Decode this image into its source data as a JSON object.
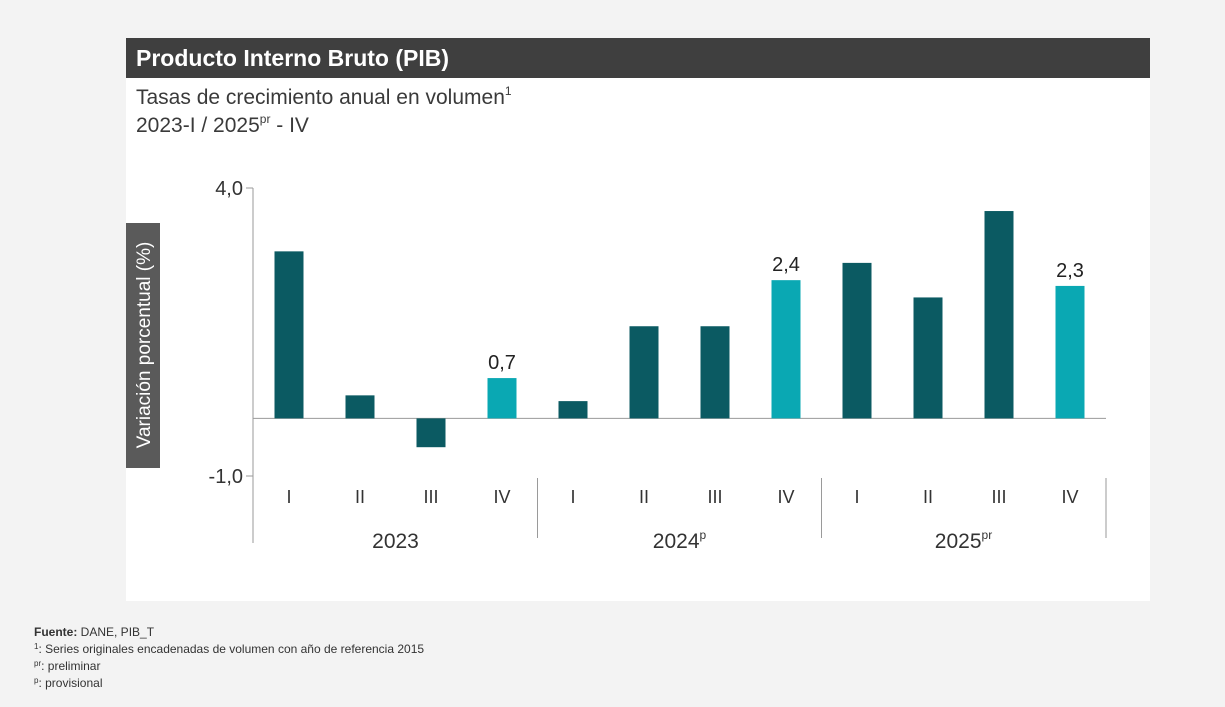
{
  "header": {
    "title": "Producto Interno Bruto (PIB)",
    "subtitle": "Tasas de crecimiento anual en volumen",
    "subtitle_sup": "1",
    "period_start": "2023-I / 2025",
    "period_sup": "pr",
    "period_end": " - IV"
  },
  "chart_data": {
    "type": "bar",
    "ylabel": "Variación porcentual (%)",
    "ylim": [
      -1.0,
      4.0
    ],
    "ytick_labels": [
      "4,0",
      "-1,0"
    ],
    "categories": [
      "I",
      "II",
      "III",
      "IV",
      "I",
      "II",
      "III",
      "IV",
      "I",
      "II",
      "III",
      "IV"
    ],
    "groups": [
      {
        "label": "2023",
        "sup": ""
      },
      {
        "label": "2024",
        "sup": "p"
      },
      {
        "label": "2025",
        "sup": "pr"
      }
    ],
    "values": [
      2.9,
      0.4,
      -0.5,
      0.7,
      0.3,
      1.6,
      1.6,
      2.4,
      2.7,
      2.1,
      3.6,
      2.3
    ],
    "data_labels": [
      "",
      "",
      "",
      "0,7",
      "",
      "",
      "",
      "2,4",
      "",
      "",
      "",
      "2,3"
    ],
    "colors": {
      "regular": "#0b5a62",
      "highlight": "#0aa8b3",
      "ylabel_bg": "#5a5a5a"
    },
    "highlight_indices": [
      3,
      7,
      11
    ]
  },
  "footnotes": {
    "source_label": "Fuente:",
    "source_text": " DANE, PIB_T",
    "note1_mark": "1",
    "note1_text": ": Series originales encadenadas de volumen con año de referencia 2015",
    "note2_mark": "pr",
    "note2_text": ": preliminar",
    "note3_mark": "p",
    "note3_text": ": provisional"
  }
}
